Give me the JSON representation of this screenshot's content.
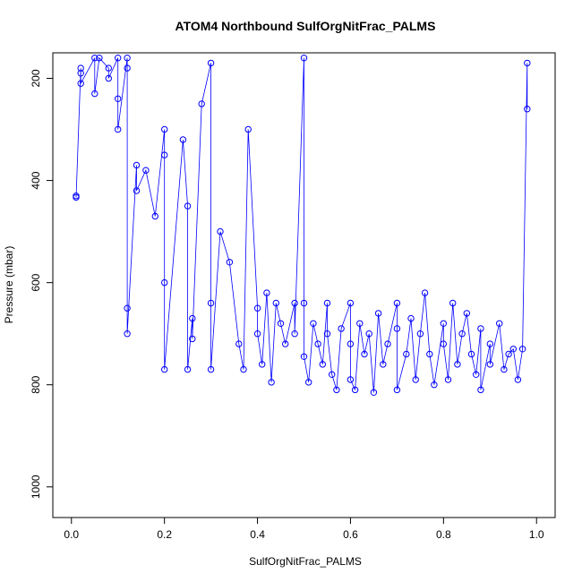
{
  "chart_data": {
    "type": "scatter",
    "title": "ATOM4 Northbound SulfOrgNitFrac_PALMS",
    "xlabel": "SulfOrgNitFrac_PALMS",
    "ylabel": "Pressure (mbar)",
    "xlim": [
      -0.04,
      1.04
    ],
    "ylim": [
      1060,
      150
    ],
    "y_reversed": true,
    "x_ticks": [
      "0.0",
      "0.2",
      "0.4",
      "0.6",
      "0.8",
      "1.0"
    ],
    "x_tick_values": [
      0,
      0.2,
      0.4,
      0.6,
      0.8,
      1.0
    ],
    "y_ticks": [
      "200",
      "400",
      "600",
      "800",
      "1000"
    ],
    "y_tick_values": [
      200,
      400,
      600,
      800,
      1000
    ],
    "grid": false,
    "marker": "open-circle",
    "connected": true,
    "color": "#0000ff",
    "series": [
      {
        "values": [
          [
            0.01,
            430
          ],
          [
            0.01,
            433
          ],
          [
            0.02,
            180
          ],
          [
            0.02,
            190
          ],
          [
            0.02,
            210
          ],
          [
            0.05,
            160
          ],
          [
            0.05,
            230
          ],
          [
            0.06,
            160
          ],
          [
            0.08,
            180
          ],
          [
            0.08,
            200
          ],
          [
            0.1,
            160
          ],
          [
            0.1,
            240
          ],
          [
            0.1,
            300
          ],
          [
            0.12,
            160
          ],
          [
            0.12,
            180
          ],
          [
            0.12,
            650
          ],
          [
            0.12,
            700
          ],
          [
            0.14,
            370
          ],
          [
            0.14,
            420
          ],
          [
            0.16,
            380
          ],
          [
            0.18,
            470
          ],
          [
            0.2,
            300
          ],
          [
            0.2,
            350
          ],
          [
            0.2,
            600
          ],
          [
            0.2,
            770
          ],
          [
            0.24,
            320
          ],
          [
            0.25,
            450
          ],
          [
            0.25,
            770
          ],
          [
            0.26,
            670
          ],
          [
            0.26,
            710
          ],
          [
            0.28,
            250
          ],
          [
            0.3,
            170
          ],
          [
            0.3,
            640
          ],
          [
            0.3,
            770
          ],
          [
            0.32,
            500
          ],
          [
            0.34,
            560
          ],
          [
            0.36,
            720
          ],
          [
            0.37,
            770
          ],
          [
            0.38,
            300
          ],
          [
            0.4,
            650
          ],
          [
            0.4,
            700
          ],
          [
            0.41,
            760
          ],
          [
            0.42,
            620
          ],
          [
            0.43,
            795
          ],
          [
            0.44,
            640
          ],
          [
            0.45,
            680
          ],
          [
            0.46,
            720
          ],
          [
            0.48,
            640
          ],
          [
            0.48,
            700
          ],
          [
            0.5,
            160
          ],
          [
            0.5,
            640
          ],
          [
            0.5,
            745
          ],
          [
            0.51,
            795
          ],
          [
            0.52,
            680
          ],
          [
            0.53,
            720
          ],
          [
            0.54,
            760
          ],
          [
            0.55,
            640
          ],
          [
            0.55,
            700
          ],
          [
            0.56,
            780
          ],
          [
            0.57,
            810
          ],
          [
            0.58,
            690
          ],
          [
            0.6,
            640
          ],
          [
            0.6,
            720
          ],
          [
            0.6,
            790
          ],
          [
            0.61,
            810
          ],
          [
            0.62,
            680
          ],
          [
            0.63,
            740
          ],
          [
            0.64,
            700
          ],
          [
            0.65,
            815
          ],
          [
            0.66,
            660
          ],
          [
            0.67,
            760
          ],
          [
            0.68,
            720
          ],
          [
            0.7,
            640
          ],
          [
            0.7,
            690
          ],
          [
            0.7,
            810
          ],
          [
            0.72,
            740
          ],
          [
            0.73,
            670
          ],
          [
            0.74,
            790
          ],
          [
            0.75,
            700
          ],
          [
            0.76,
            620
          ],
          [
            0.77,
            740
          ],
          [
            0.78,
            800
          ],
          [
            0.8,
            680
          ],
          [
            0.8,
            720
          ],
          [
            0.81,
            790
          ],
          [
            0.82,
            640
          ],
          [
            0.83,
            760
          ],
          [
            0.84,
            700
          ],
          [
            0.85,
            660
          ],
          [
            0.86,
            740
          ],
          [
            0.87,
            780
          ],
          [
            0.88,
            690
          ],
          [
            0.88,
            810
          ],
          [
            0.9,
            720
          ],
          [
            0.9,
            760
          ],
          [
            0.92,
            680
          ],
          [
            0.93,
            770
          ],
          [
            0.94,
            740
          ],
          [
            0.95,
            730
          ],
          [
            0.96,
            790
          ],
          [
            0.97,
            730
          ],
          [
            0.98,
            170
          ],
          [
            0.98,
            260
          ]
        ]
      }
    ]
  }
}
